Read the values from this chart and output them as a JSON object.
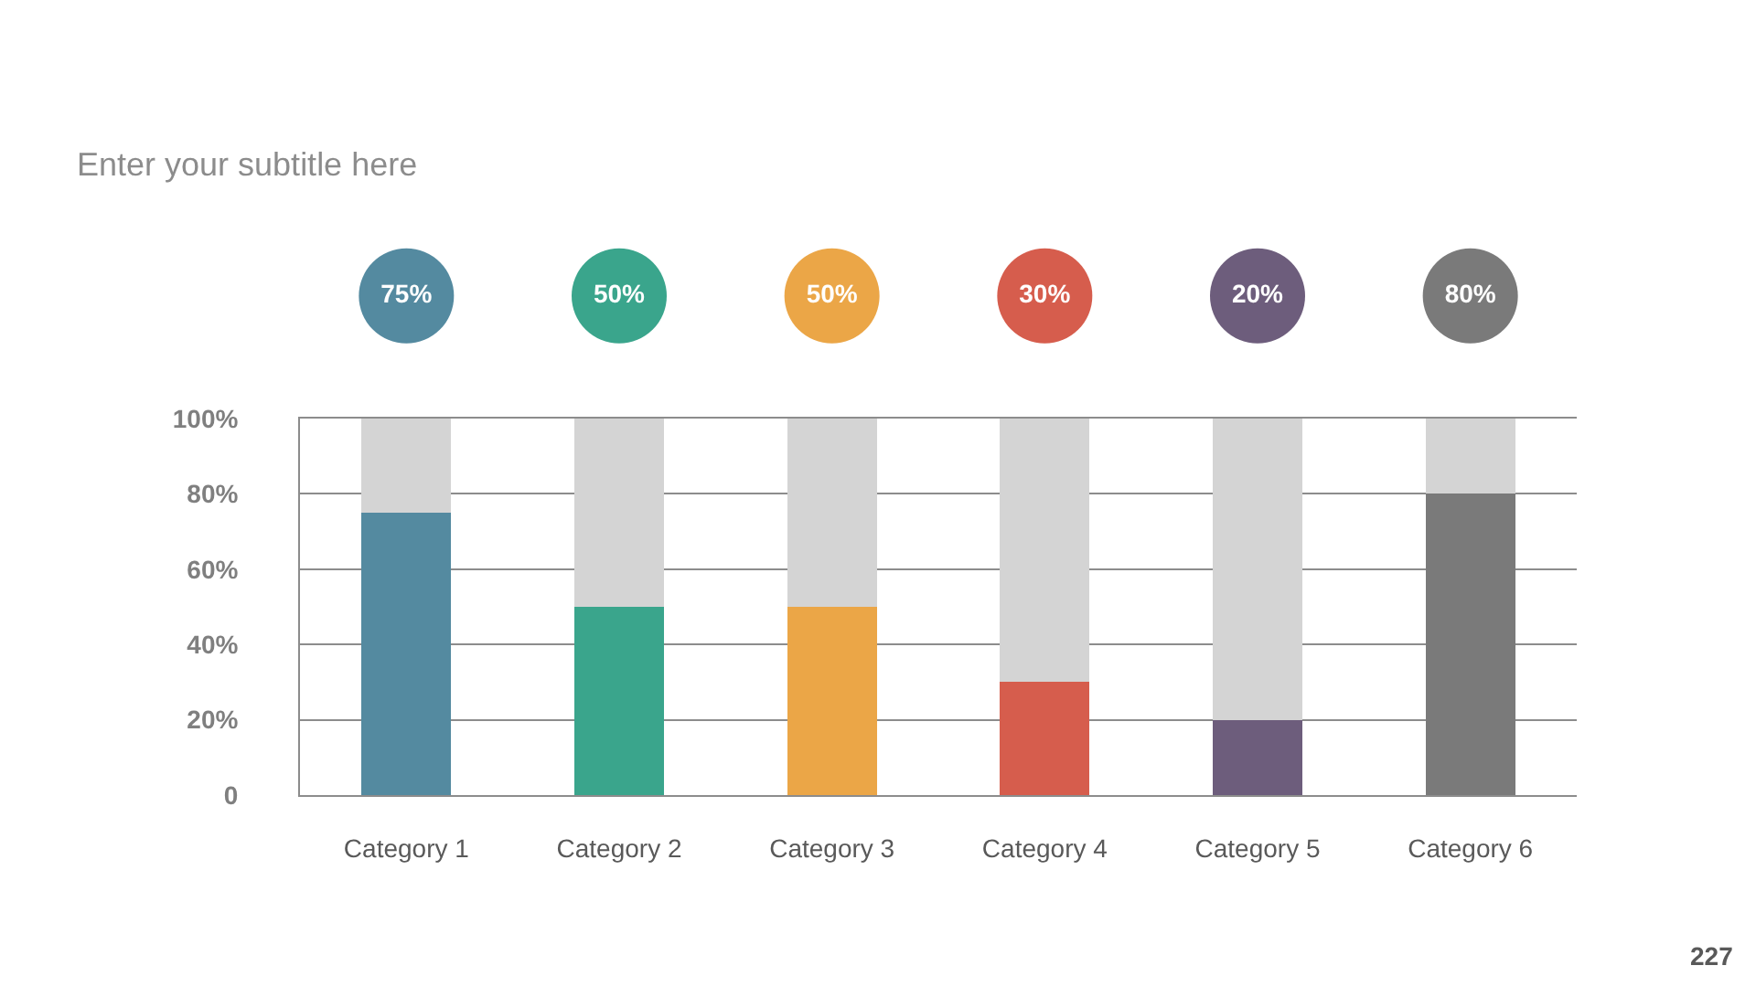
{
  "chart_data": {
    "type": "bar",
    "subtitle": "Enter your subtitle here",
    "stacked": true,
    "categories": [
      "Category 1",
      "Category 2",
      "Category 3",
      "Category 4",
      "Category 5",
      "Category 6"
    ],
    "series": [
      {
        "colors": [
          "#548aa0",
          "#3aa58c",
          "#eba647",
          "#d65d4d",
          "#6d5d7c",
          "#7a7a7a"
        ],
        "values": [
          75,
          50,
          50,
          30,
          20,
          80
        ],
        "value_labels": [
          "75%",
          "50%",
          "50%",
          "30%",
          "20%",
          "80%"
        ]
      },
      {
        "color": "#d4d4d4",
        "values": [
          25,
          50,
          50,
          70,
          80,
          20
        ]
      }
    ],
    "ylim": [
      0,
      100
    ],
    "yticks": [
      0,
      {
        "value": 20,
        "label": "20%"
      },
      {
        "value": 40,
        "label": "40%"
      },
      {
        "value": 60,
        "label": "60%"
      },
      {
        "value": 80,
        "label": "80%"
      },
      {
        "value": 100,
        "label": "100%"
      }
    ],
    "grid": "y",
    "annotations": [
      "227"
    ]
  }
}
